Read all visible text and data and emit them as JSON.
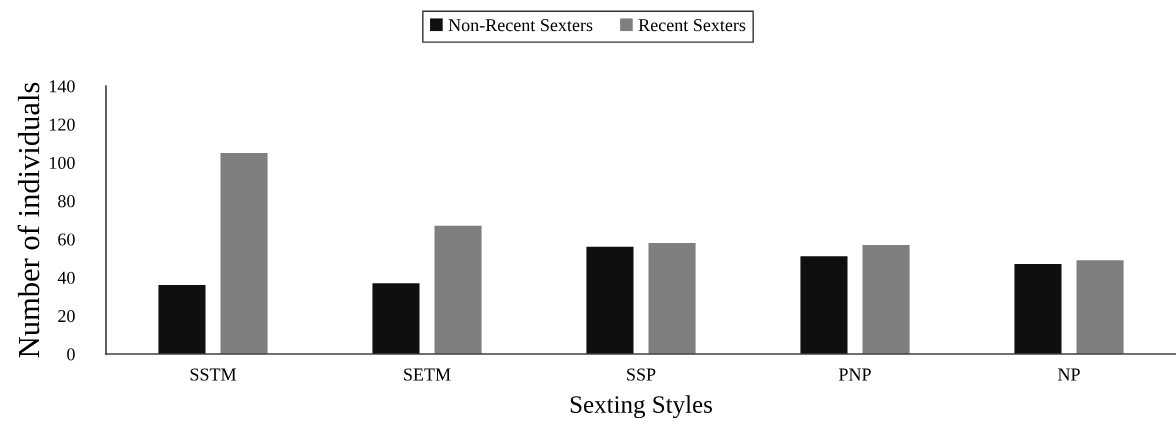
{
  "chart_data": {
    "type": "bar",
    "xlabel": "Sexting Styles",
    "ylabel": "Number of individuals",
    "categories": [
      "SSTM",
      "SETM",
      "SSP",
      "PNP",
      "NP"
    ],
    "series": [
      {
        "name": "Non-Recent Sexters",
        "color": "#0f0f0f",
        "values": [
          36,
          37,
          56,
          51,
          47
        ]
      },
      {
        "name": "Recent Sexters",
        "color": "#7f7f7f",
        "values": [
          105,
          67,
          58,
          57,
          49
        ]
      }
    ],
    "ylim": [
      0,
      140
    ],
    "yticks": [
      0,
      20,
      40,
      60,
      80,
      100,
      120,
      140
    ],
    "grid": false,
    "legend": "top"
  }
}
